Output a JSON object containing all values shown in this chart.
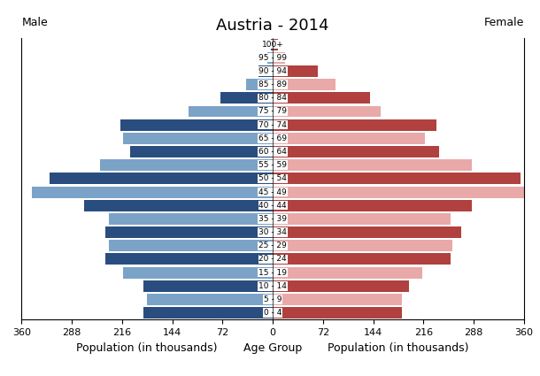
{
  "title": "Austria - 2014",
  "label_male": "Male",
  "label_female": "Female",
  "xlabel_left": "Population (in thousands)",
  "xlabel_center": "Age Group",
  "xlabel_right": "Population (in thousands)",
  "age_groups": [
    "0 - 4",
    "5 - 9",
    "10 - 14",
    "15 - 19",
    "20 - 24",
    "25 - 29",
    "30 - 34",
    "35 - 39",
    "40 - 44",
    "45 - 49",
    "50 - 54",
    "55 - 59",
    "60 - 64",
    "65 - 69",
    "70 - 74",
    "75 - 79",
    "80 - 84",
    "85 - 89",
    "90 - 94",
    "95 - 99",
    "100+"
  ],
  "male_values": [
    185,
    180,
    185,
    215,
    240,
    235,
    240,
    235,
    270,
    345,
    320,
    248,
    205,
    215,
    218,
    120,
    75,
    38,
    20,
    8,
    3
  ],
  "female_values": [
    185,
    185,
    195,
    215,
    255,
    258,
    270,
    255,
    285,
    360,
    355,
    285,
    238,
    218,
    235,
    155,
    140,
    90,
    65,
    18,
    8
  ],
  "male_dark": "#2a4d7f",
  "male_light": "#7ba3c8",
  "female_dark": "#b0413e",
  "female_light": "#e8a9a8",
  "xlim": 360,
  "background_color": "#ffffff",
  "title_fontsize": 13,
  "axis_label_fontsize": 9,
  "tick_fontsize": 8,
  "bar_height": 0.85
}
